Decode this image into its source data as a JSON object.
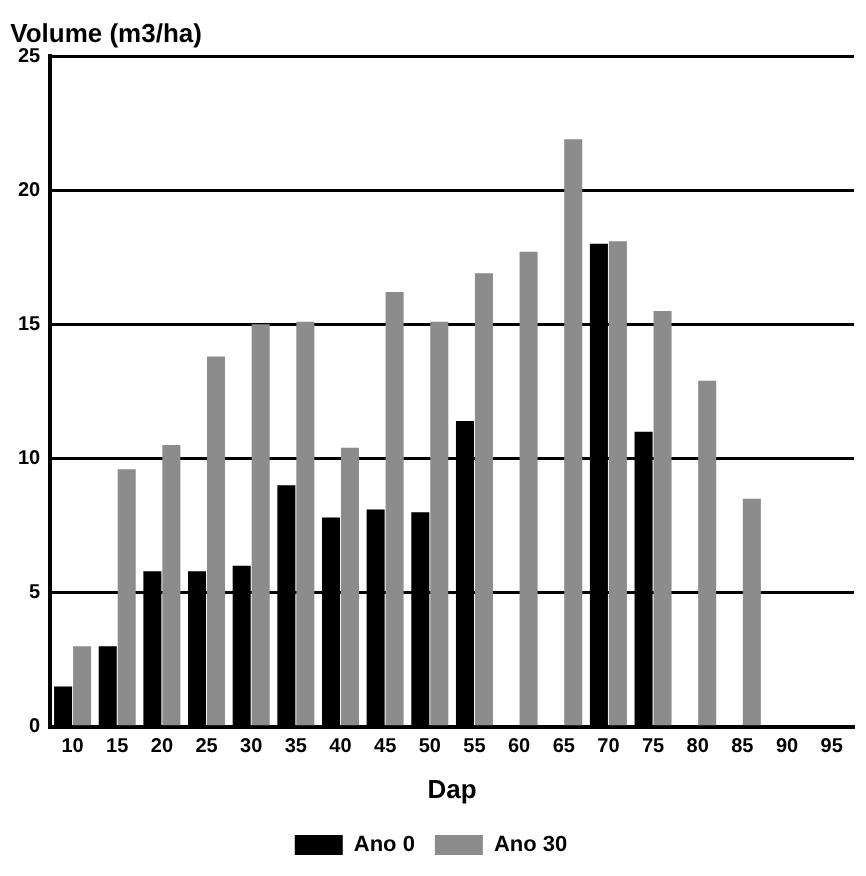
{
  "chart_data": {
    "type": "bar",
    "ylabel": "Volume (m3/ha)",
    "xlabel": "Dap",
    "categories": [
      "10",
      "15",
      "20",
      "25",
      "30",
      "35",
      "40",
      "45",
      "50",
      "55",
      "60",
      "65",
      "70",
      "75",
      "80",
      "85",
      "90",
      "95"
    ],
    "series": [
      {
        "name": "Ano 0",
        "color": "#000000",
        "values": [
          1.5,
          3,
          5.8,
          5.8,
          6,
          9,
          7.8,
          8.1,
          8,
          11.4,
          null,
          null,
          18,
          11,
          null,
          null,
          null,
          null
        ]
      },
      {
        "name": "Ano 30",
        "color": "#8c8c8c",
        "values": [
          3,
          9.6,
          10.5,
          13.8,
          15,
          15.1,
          10.4,
          16.2,
          15.1,
          16.9,
          17.7,
          21.9,
          18.1,
          15.5,
          12.9,
          8.5,
          null,
          null
        ]
      }
    ],
    "ylim": [
      0,
      25
    ],
    "yticks": [
      0,
      5,
      10,
      15,
      20,
      25
    ],
    "grid": "y",
    "legend": "bottom"
  }
}
